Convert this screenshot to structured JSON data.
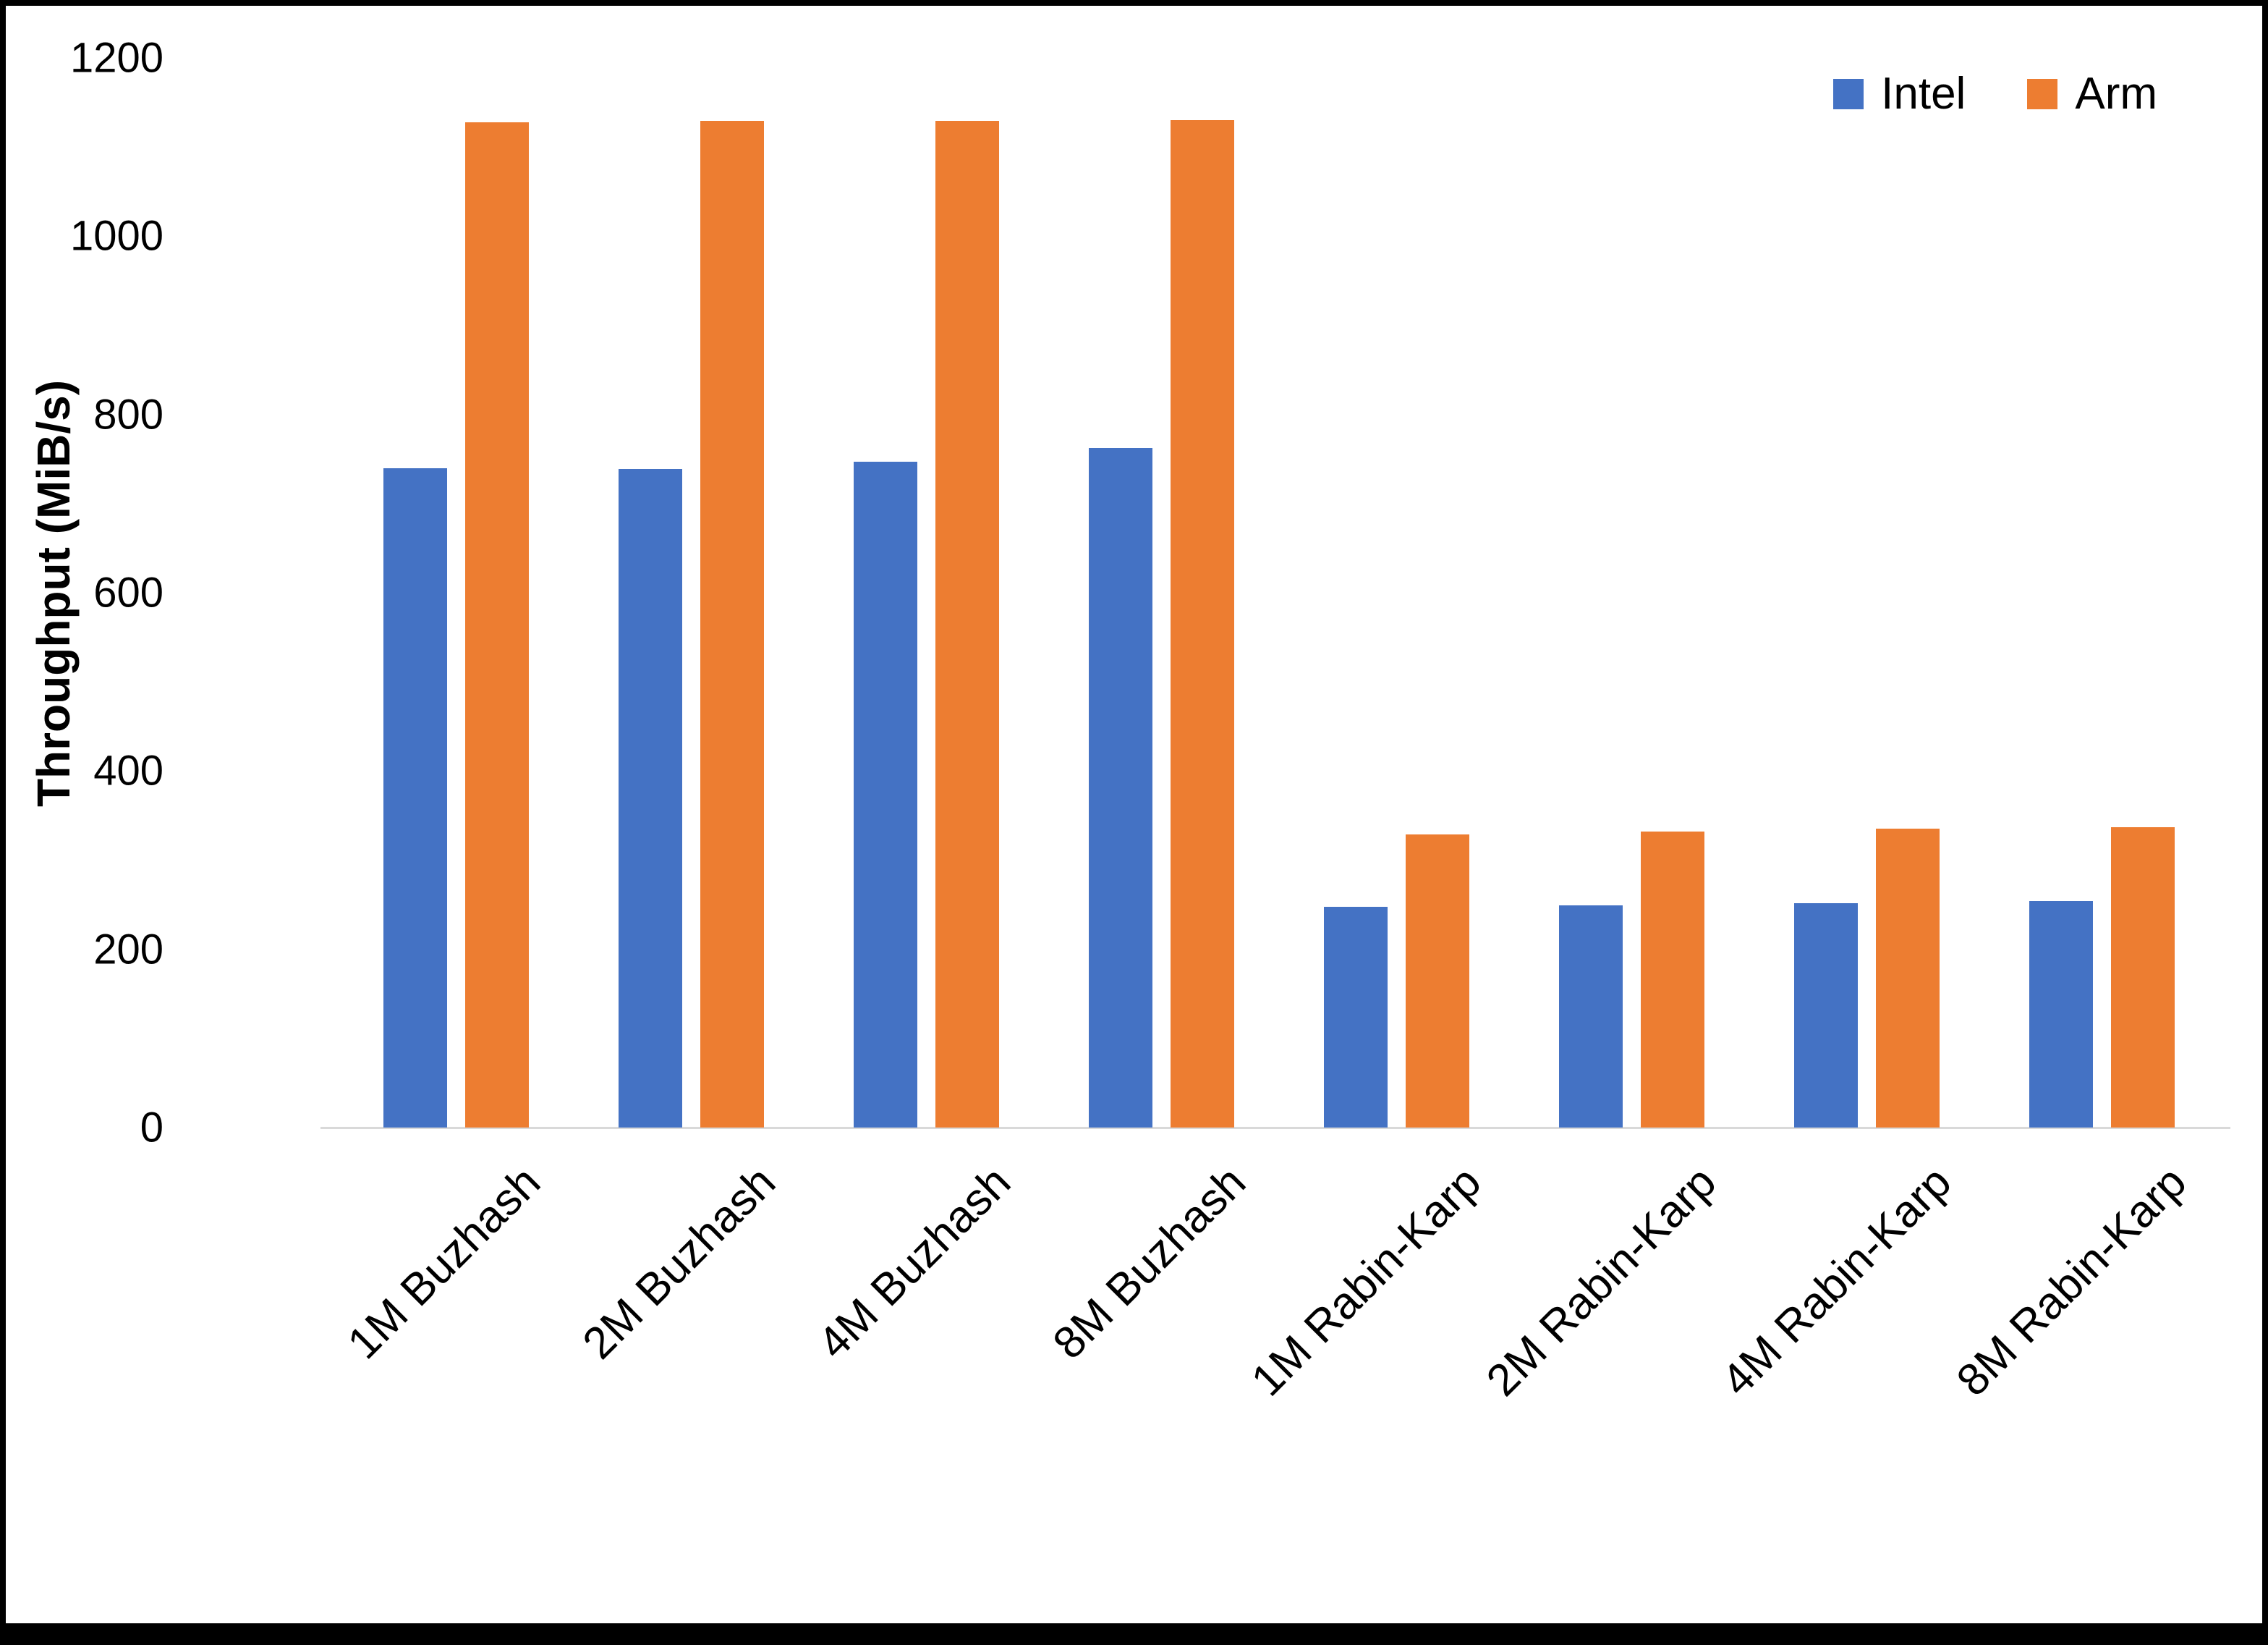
{
  "chart_data": {
    "type": "bar",
    "title": "",
    "xlabel": "",
    "ylabel": "Throughput (MiB/s)",
    "ylim": [
      0,
      1200
    ],
    "ytick_step": 200,
    "grid": false,
    "legend_position": "top-right",
    "categories": [
      "1M Buzhash",
      "2M Buzhash",
      "4M Buzhash",
      "8M Buzhash",
      "1M Rabin-Karp",
      "2M Rabin-Karp",
      "4M Rabin-Karp",
      "8M Rabin-Karp"
    ],
    "series": [
      {
        "name": "Intel",
        "color": "#4472C4",
        "values": [
          740,
          739,
          747,
          762,
          248,
          249,
          252,
          254
        ]
      },
      {
        "name": "Arm",
        "color": "#ED7D31",
        "values": [
          1128,
          1129,
          1129,
          1130,
          329,
          332,
          335,
          337
        ]
      }
    ]
  }
}
